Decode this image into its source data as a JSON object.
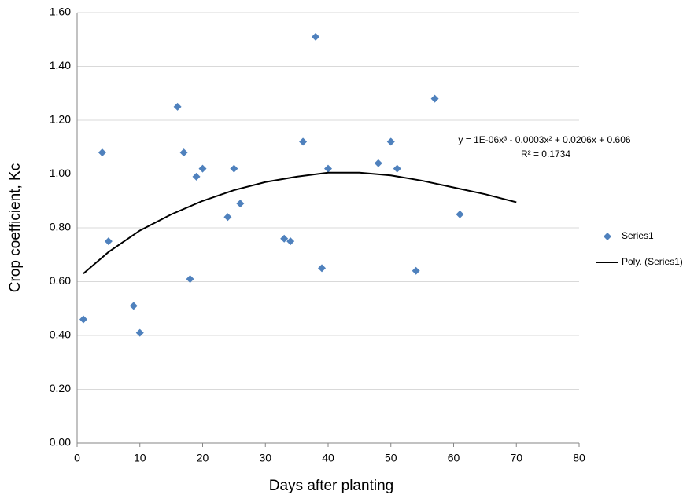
{
  "chart_data": {
    "type": "scatter",
    "xlabel": "Days after planting",
    "ylabel": "Crop coefficient, Kc",
    "xlim": [
      0,
      80
    ],
    "ylim": [
      0,
      1.6
    ],
    "xticks": [
      0,
      10,
      20,
      30,
      40,
      50,
      60,
      70,
      80
    ],
    "yticks": [
      {
        "value": 0,
        "label": "0.00"
      },
      {
        "value": 0.2,
        "label": "0.20"
      },
      {
        "value": 0.4,
        "label": "0.40"
      },
      {
        "value": 0.6,
        "label": "0.60"
      },
      {
        "value": 0.8,
        "label": "0.80"
      },
      {
        "value": 1.0,
        "label": "1.00"
      },
      {
        "value": 1.2,
        "label": "1.20"
      },
      {
        "value": 1.4,
        "label": "1.40"
      },
      {
        "value": 1.6,
        "label": "1.60"
      }
    ],
    "grid": true,
    "legend": "right",
    "series": [
      {
        "name": "Series1",
        "style": "marker",
        "color": "#4f81bd",
        "x": [
          1,
          4,
          5,
          9,
          10,
          16,
          17,
          18,
          19,
          20,
          24,
          25,
          26,
          33,
          34,
          36,
          38,
          39,
          40,
          48,
          50,
          51,
          54,
          57,
          61
        ],
        "values": [
          0.46,
          1.08,
          0.75,
          0.51,
          0.41,
          1.25,
          1.08,
          0.61,
          0.99,
          1.02,
          0.84,
          1.02,
          0.89,
          0.76,
          0.75,
          1.12,
          1.51,
          0.65,
          1.02,
          1.04,
          1.12,
          1.02,
          0.64,
          1.28,
          0.85
        ]
      },
      {
        "name": "Poly. (Series1)",
        "style": "line",
        "color": "#000000",
        "x": [
          1,
          5,
          10,
          15,
          20,
          25,
          30,
          35,
          40,
          45,
          50,
          55,
          60,
          65,
          70
        ],
        "values": [
          0.63,
          0.71,
          0.79,
          0.85,
          0.9,
          0.94,
          0.97,
          0.99,
          1.005,
          1.005,
          0.995,
          0.975,
          0.95,
          0.925,
          0.895
        ]
      }
    ],
    "annotations": [
      "y = 1E-06x³ - 0.0003x² + 0.0206x + 0.606",
      "R² = 0.1734"
    ]
  }
}
